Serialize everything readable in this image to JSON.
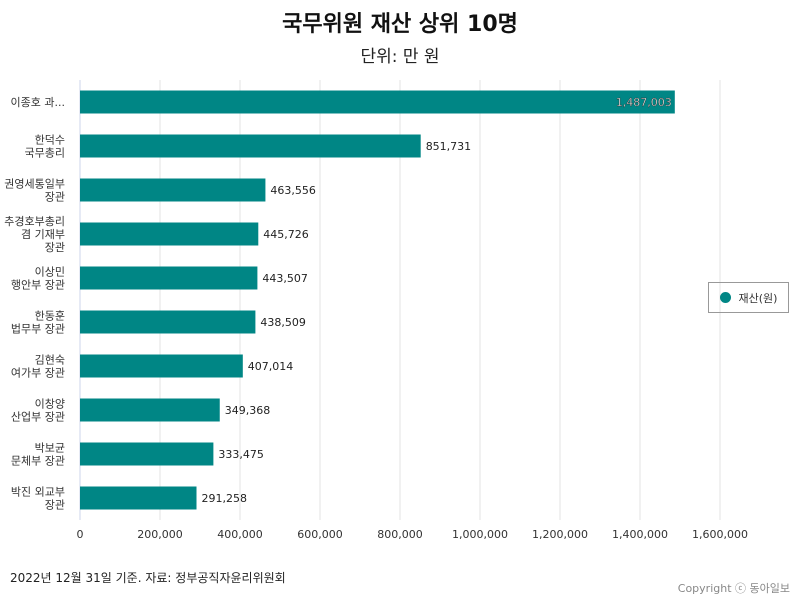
{
  "chart_data": {
    "type": "bar",
    "orientation": "horizontal",
    "title": "국무위원 재산 상위 10명",
    "subtitle": "단위: 만 원",
    "categories": [
      [
        "이종호 과..."
      ],
      [
        "한덕수",
        "국무총리"
      ],
      [
        "권영세통일부",
        "장관"
      ],
      [
        "추경호부총리",
        "겸 기재부",
        "장관"
      ],
      [
        "이상민",
        "행안부 장관"
      ],
      [
        "한동훈",
        "법무부 장관"
      ],
      [
        "김현숙",
        "여가부 장관"
      ],
      [
        "이창양",
        "산업부 장관"
      ],
      [
        "박보균",
        "문체부 장관"
      ],
      [
        "박진 외교부",
        "장관"
      ]
    ],
    "values": [
      1487003,
      851731,
      463556,
      445726,
      443507,
      438509,
      407014,
      349368,
      333475,
      291258
    ],
    "value_labels": [
      "1,487,003",
      "851,731",
      "463,556",
      "445,726",
      "443,507",
      "438,509",
      "407,014",
      "349,368",
      "333,475",
      "291,258"
    ],
    "series_name": "재산(원)",
    "color": "#008685",
    "xlim": [
      0,
      1600000
    ],
    "xticks": [
      0,
      200000,
      400000,
      600000,
      800000,
      1000000,
      1200000,
      1400000,
      1600000
    ],
    "xtick_labels": [
      "0",
      "200,000",
      "400,000",
      "600,000",
      "800,000",
      "1,000,000",
      "1,200,000",
      "1,400,000",
      "1,600,000"
    ],
    "grid": true,
    "legend_position": "right"
  },
  "footnote": "2022년 12월 31일 기준. 자료: 정부공직자윤리위원회",
  "copyright": "Copyright ⓒ 동아일보"
}
